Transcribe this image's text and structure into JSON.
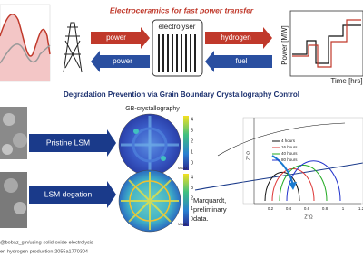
{
  "header": {
    "title": "Electroceramics for fast power transfer"
  },
  "flow": {
    "left_top": "power",
    "center": "electrolyser",
    "right_top": "hydrogen",
    "left_bottom": "power",
    "right_bottom": "fuel"
  },
  "power_plot": {
    "y_label": "Power [MW]",
    "x_label": "Time [hrs]"
  },
  "section": {
    "title": "Degradation Prevention via Grain Boundary Crystallography Control",
    "subtitle": "GB-crystallography",
    "labels": [
      "Pristine LSM",
      "LSM degation"
    ],
    "colorbar_ticks": [
      "4",
      "3",
      "2",
      "1",
      "0"
    ],
    "colorbar_unit": "M.U.D",
    "note": [
      "Marquardt,",
      "preliminary",
      "data."
    ]
  },
  "nyquist": {
    "y_label": "Z'' Ω",
    "x_label": "Z' Ω",
    "legend": [
      "4 hours",
      "16 hours",
      "40 hours",
      "80 hours"
    ],
    "x_ticks": [
      "0.2",
      "0.4",
      "0.6",
      "0.8",
      "1",
      "1.2"
    ]
  },
  "source": {
    "lines": [
      "@bobaz_gin/using-solid-oxide-electrolysis-",
      "en-hydrogen-production-2055a1770304"
    ]
  }
}
